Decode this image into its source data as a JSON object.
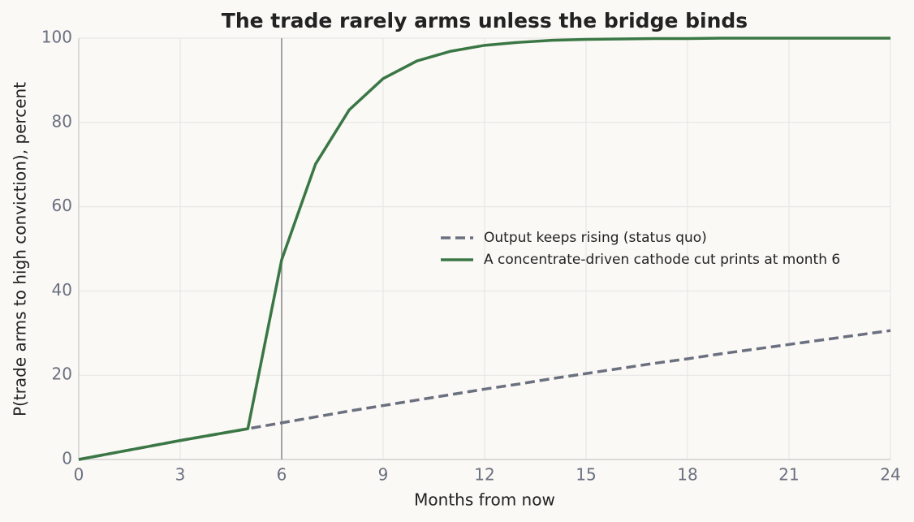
{
  "chart_data": {
    "type": "line",
    "title": "The trade rarely arms unless the bridge binds",
    "x_label": "Months from now",
    "y_label": "P(trade arms to high conviction), percent",
    "x": [
      0,
      1,
      2,
      3,
      4,
      5,
      6,
      7,
      8,
      9,
      10,
      11,
      12,
      13,
      14,
      15,
      16,
      17,
      18,
      19,
      20,
      21,
      22,
      23,
      24
    ],
    "series": [
      {
        "name": "Output keeps rising (status quo)",
        "color": "#6b7080",
        "style": "dashed",
        "values": [
          0,
          1.5,
          3.0,
          4.5,
          5.9,
          7.3,
          8.7,
          10.1,
          11.5,
          12.8,
          14.1,
          15.4,
          16.7,
          17.9,
          19.2,
          20.4,
          21.6,
          22.8,
          23.9,
          25.1,
          26.2,
          27.3,
          28.4,
          29.5,
          30.6
        ]
      },
      {
        "name": "A concentrate-driven cathode cut prints at month 6",
        "color": "#3a7745",
        "style": "solid",
        "values": [
          0,
          1.5,
          3.0,
          4.5,
          5.9,
          7.3,
          47.4,
          70.1,
          83.0,
          90.4,
          94.6,
          96.9,
          98.3,
          99.0,
          99.5,
          99.7,
          99.8,
          99.9,
          99.9,
          100,
          100,
          100,
          100,
          100,
          100
        ]
      }
    ],
    "reference_line_x": 6,
    "xlim": [
      0,
      24
    ],
    "xticks": [
      0,
      3,
      6,
      9,
      12,
      15,
      18,
      21,
      24
    ],
    "ylim": [
      0,
      100
    ],
    "yticks": [
      0,
      20,
      40,
      60,
      80,
      100
    ],
    "grid": true,
    "legend": "right"
  }
}
